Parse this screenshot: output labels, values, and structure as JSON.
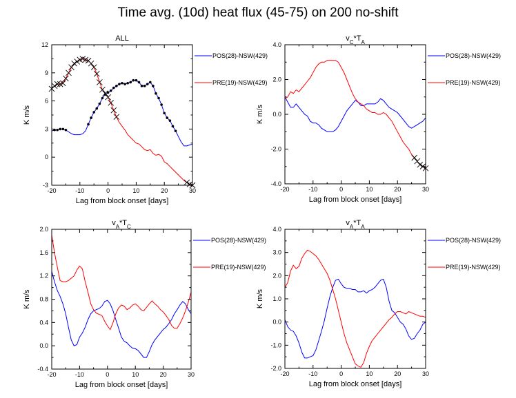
{
  "title": "Time avg. (10d) heat flux (45-75) on 200 no-shift",
  "chart_data": [
    {
      "type": "line",
      "title": "ALL",
      "title_parts": [
        {
          "text": "ALL",
          "sub": ""
        }
      ],
      "xlabel": "Lag from block onset [days]",
      "ylabel": "K m/s",
      "xlim": [
        -20,
        30
      ],
      "ylim": [
        -3,
        12
      ],
      "xticks": [
        -20,
        -10,
        0,
        10,
        20,
        30
      ],
      "yticks": [
        -3,
        0,
        3,
        6,
        9,
        12
      ],
      "ytick_labels": [
        "-3",
        "0",
        "3",
        "6",
        "9",
        "12"
      ],
      "series": [
        {
          "name": "POS(28)-NSW(429)",
          "color": "#0000ff",
          "x": [
            -20,
            -19,
            -18,
            -17,
            -16,
            -15,
            -14,
            -13,
            -12,
            -11,
            -10,
            -9,
            -8,
            -7,
            -6,
            -5,
            -4,
            -3,
            -2,
            -1,
            0,
            1,
            2,
            3,
            4,
            5,
            6,
            7,
            8,
            9,
            10,
            11,
            12,
            13,
            14,
            15,
            16,
            17,
            18,
            19,
            20,
            21,
            22,
            23,
            24,
            25,
            26,
            27,
            28,
            29,
            30
          ],
          "y": [
            2.8,
            2.9,
            2.9,
            3.0,
            3.0,
            2.9,
            2.7,
            2.5,
            2.4,
            2.4,
            2.4,
            2.5,
            2.8,
            3.5,
            4.2,
            4.8,
            5.2,
            5.7,
            6.3,
            6.7,
            6.9,
            7.1,
            7.4,
            7.6,
            7.8,
            7.9,
            7.8,
            7.9,
            8.0,
            8.2,
            8.2,
            8.0,
            7.6,
            7.6,
            7.8,
            8.0,
            7.6,
            6.8,
            6.3,
            5.6,
            4.7,
            4.2,
            3.9,
            3.3,
            2.8,
            2.2,
            1.6,
            1.2,
            1.2,
            1.3,
            1.4
          ],
          "markers": {
            "shape": "dot",
            "x": [
              -19,
              -18,
              -17,
              -16,
              -15,
              -7,
              -6,
              -5,
              -4,
              -3,
              -2,
              -1,
              0,
              1,
              2,
              3,
              4,
              5,
              6,
              7,
              8,
              9,
              10,
              11,
              12,
              13,
              14,
              15,
              16,
              17,
              18,
              19,
              20,
              21,
              22,
              23,
              24
            ]
          }
        },
        {
          "name": "PRE(19)-NSW(429)",
          "color": "#ff0000",
          "x": [
            -20,
            -19,
            -18,
            -17,
            -16,
            -15,
            -14,
            -13,
            -12,
            -11,
            -10,
            -9,
            -8,
            -7,
            -6,
            -5,
            -4,
            -3,
            -2,
            -1,
            0,
            1,
            2,
            3,
            4,
            5,
            6,
            7,
            8,
            9,
            10,
            11,
            12,
            13,
            14,
            15,
            16,
            17,
            18,
            19,
            20,
            21,
            22,
            23,
            24,
            25,
            26,
            27,
            28,
            29,
            30
          ],
          "y": [
            7.3,
            7.6,
            7.8,
            7.8,
            7.9,
            8.4,
            9.0,
            9.6,
            10.0,
            10.2,
            10.4,
            10.5,
            10.4,
            10.3,
            10.0,
            9.6,
            8.9,
            8.0,
            7.2,
            6.8,
            6.4,
            5.8,
            5.0,
            4.3,
            3.7,
            3.3,
            2.9,
            2.4,
            2.1,
            1.8,
            1.5,
            1.4,
            1.1,
            0.8,
            0.7,
            0.8,
            0.4,
            0.2,
            0.3,
            0.1,
            -0.5,
            -0.7,
            -1.0,
            -1.3,
            -1.6,
            -1.9,
            -2.2,
            -2.5,
            -2.7,
            -2.9,
            -3.0
          ],
          "markers": {
            "shape": "x",
            "x": [
              -20,
              -19,
              -18,
              -17,
              -16,
              -15,
              -14,
              -13,
              -12,
              -11,
              -10,
              -9,
              -8,
              -7,
              -6,
              -5,
              -4,
              -3,
              -2,
              -1,
              0,
              1,
              2,
              3,
              28,
              29,
              30
            ]
          }
        }
      ]
    },
    {
      "type": "line",
      "title": "vC*TA",
      "title_parts": [
        {
          "text": "v",
          "sub": "C"
        },
        {
          "text": "*T",
          "sub": "A"
        }
      ],
      "xlabel": "Lag from block onset [days]",
      "ylabel": "K m/s",
      "xlim": [
        -20,
        30
      ],
      "ylim": [
        -4,
        4
      ],
      "xticks": [
        -20,
        -10,
        0,
        10,
        20,
        30
      ],
      "yticks": [
        -4,
        -2,
        0,
        2,
        4
      ],
      "ytick_labels": [
        "-4.0",
        "-2.0",
        "0.0",
        "2.0",
        "4.0"
      ],
      "series": [
        {
          "name": "POS(28)-NSW(429)",
          "color": "#0000ff",
          "x": [
            -20,
            -19,
            -18,
            -17,
            -16,
            -15,
            -14,
            -13,
            -12,
            -11,
            -10,
            -9,
            -8,
            -7,
            -6,
            -5,
            -4,
            -3,
            -2,
            -1,
            0,
            1,
            2,
            3,
            4,
            5,
            6,
            7,
            8,
            9,
            10,
            11,
            12,
            13,
            14,
            15,
            16,
            17,
            18,
            19,
            20,
            21,
            22,
            23,
            24,
            25,
            26,
            27,
            28,
            29,
            30
          ],
          "y": [
            1.0,
            0.7,
            0.4,
            0.4,
            0.6,
            0.4,
            0.2,
            0.0,
            -0.1,
            -0.4,
            -0.5,
            -0.5,
            -0.6,
            -0.8,
            -0.9,
            -1.0,
            -1.0,
            -1.0,
            -0.9,
            -0.7,
            -0.4,
            -0.1,
            0.2,
            0.4,
            0.6,
            0.8,
            0.7,
            0.5,
            0.5,
            0.6,
            0.6,
            0.6,
            0.6,
            0.7,
            0.9,
            0.8,
            0.6,
            0.4,
            0.3,
            0.2,
            0.1,
            -0.1,
            -0.3,
            -0.5,
            -0.7,
            -0.8,
            -0.7,
            -0.6,
            -0.5,
            -0.4,
            -0.2
          ]
        },
        {
          "name": "PRE(19)-NSW(429)",
          "color": "#ff0000",
          "x": [
            -20,
            -19,
            -18,
            -17,
            -16,
            -15,
            -14,
            -13,
            -12,
            -11,
            -10,
            -9,
            -8,
            -7,
            -6,
            -5,
            -4,
            -3,
            -2,
            -1,
            0,
            1,
            2,
            3,
            4,
            5,
            6,
            7,
            8,
            9,
            10,
            11,
            12,
            13,
            14,
            15,
            16,
            17,
            18,
            19,
            20,
            21,
            22,
            23,
            24,
            25,
            26,
            27,
            28,
            29,
            30
          ],
          "y": [
            0.9,
            1.0,
            1.3,
            1.2,
            1.4,
            1.3,
            1.5,
            1.7,
            1.9,
            2.1,
            2.4,
            2.7,
            2.9,
            3.0,
            3.0,
            3.1,
            3.1,
            3.1,
            3.1,
            3.0,
            2.7,
            2.4,
            2.0,
            1.6,
            1.2,
            0.9,
            0.7,
            0.6,
            0.5,
            0.3,
            0.2,
            0.1,
            0.1,
            0.0,
            0.0,
            0.1,
            0.0,
            -0.2,
            -0.4,
            -0.7,
            -1.0,
            -1.3,
            -1.6,
            -1.8,
            -2.0,
            -2.3,
            -2.5,
            -2.7,
            -2.9,
            -3.0,
            -3.1
          ],
          "markers": {
            "shape": "x",
            "x": [
              26,
              27,
              28,
              29,
              30
            ]
          }
        }
      ]
    },
    {
      "type": "line",
      "title": "vA*TC",
      "title_parts": [
        {
          "text": "v",
          "sub": "A"
        },
        {
          "text": "*T",
          "sub": "C"
        }
      ],
      "xlabel": "Lag from block onset [days]",
      "ylabel": "K m/s",
      "xlim": [
        -20,
        30
      ],
      "ylim": [
        -0.4,
        2.0
      ],
      "xticks": [
        -20,
        -10,
        0,
        10,
        20,
        30
      ],
      "yticks": [
        -0.4,
        0.0,
        0.4,
        0.8,
        1.2,
        1.6,
        2.0
      ],
      "ytick_labels": [
        "-0.4",
        "0.0",
        "0.4",
        "0.8",
        "1.2",
        "1.6",
        "2.0"
      ],
      "series": [
        {
          "name": "POS(28)-NSW(429)",
          "color": "#0000ff",
          "x": [
            -20,
            -19,
            -18,
            -17,
            -16,
            -15,
            -14,
            -13,
            -12,
            -11,
            -10,
            -9,
            -8,
            -7,
            -6,
            -5,
            -4,
            -3,
            -2,
            -1,
            0,
            1,
            2,
            3,
            4,
            5,
            6,
            7,
            8,
            9,
            10,
            11,
            12,
            13,
            14,
            15,
            16,
            17,
            18,
            19,
            20,
            21,
            22,
            23,
            24,
            25,
            26,
            27,
            28,
            29,
            30
          ],
          "y": [
            1.28,
            1.1,
            0.95,
            0.85,
            0.72,
            0.55,
            0.32,
            0.1,
            0.0,
            0.02,
            0.15,
            0.22,
            0.32,
            0.45,
            0.55,
            0.6,
            0.62,
            0.64,
            0.68,
            0.76,
            0.78,
            0.72,
            0.6,
            0.45,
            0.3,
            0.15,
            0.08,
            0.05,
            0.0,
            -0.04,
            -0.05,
            -0.08,
            -0.14,
            -0.2,
            -0.2,
            -0.1,
            0.02,
            0.1,
            0.16,
            0.22,
            0.28,
            0.32,
            0.38,
            0.45,
            0.55,
            0.62,
            0.7,
            0.76,
            0.72,
            0.62,
            0.55
          ]
        },
        {
          "name": "PRE(19)-NSW(429)",
          "color": "#ff0000",
          "x": [
            -20,
            -19,
            -18,
            -17,
            -16,
            -15,
            -14,
            -13,
            -12,
            -11,
            -10,
            -9,
            -8,
            -7,
            -6,
            -5,
            -4,
            -3,
            -2,
            -1,
            0,
            1,
            2,
            3,
            4,
            5,
            6,
            7,
            8,
            9,
            10,
            11,
            12,
            13,
            14,
            15,
            16,
            17,
            18,
            19,
            20,
            21,
            22,
            23,
            24,
            25,
            26,
            27,
            28,
            29,
            30
          ],
          "y": [
            1.9,
            1.6,
            1.35,
            1.12,
            1.1,
            1.1,
            1.12,
            1.16,
            1.2,
            1.3,
            1.37,
            1.32,
            1.1,
            0.92,
            0.72,
            0.62,
            0.56,
            0.54,
            0.52,
            0.42,
            0.34,
            0.28,
            0.4,
            0.55,
            0.65,
            0.7,
            0.68,
            0.62,
            0.65,
            0.7,
            0.72,
            0.68,
            0.62,
            0.6,
            0.66,
            0.72,
            0.77,
            0.72,
            0.68,
            0.62,
            0.58,
            0.52,
            0.45,
            0.35,
            0.3,
            0.3,
            0.38,
            0.48,
            0.6,
            0.75,
            0.92
          ]
        }
      ]
    },
    {
      "type": "line",
      "title": "vA*TA",
      "title_parts": [
        {
          "text": "v",
          "sub": "A"
        },
        {
          "text": "*T",
          "sub": "A"
        }
      ],
      "xlabel": "Lag from block onset [days]",
      "ylabel": "K m/s",
      "xlim": [
        -20,
        30
      ],
      "ylim": [
        -2,
        4
      ],
      "xticks": [
        -20,
        -10,
        0,
        10,
        20,
        30
      ],
      "yticks": [
        -2,
        -1,
        0,
        1,
        2,
        3,
        4
      ],
      "ytick_labels": [
        "-2.0",
        "-1.0",
        "0.0",
        "1.0",
        "2.0",
        "3.0",
        "4.0"
      ],
      "series": [
        {
          "name": "POS(28)-NSW(429)",
          "color": "#0000ff",
          "x": [
            -20,
            -19,
            -18,
            -17,
            -16,
            -15,
            -14,
            -13,
            -12,
            -11,
            -10,
            -9,
            -8,
            -7,
            -6,
            -5,
            -4,
            -3,
            -2,
            -1,
            0,
            1,
            2,
            3,
            4,
            5,
            6,
            7,
            8,
            9,
            10,
            11,
            12,
            13,
            14,
            15,
            16,
            17,
            18,
            19,
            20,
            21,
            22,
            23,
            24,
            25,
            26,
            27,
            28,
            29,
            30
          ],
          "y": [
            0.1,
            -0.2,
            -0.35,
            -0.4,
            -0.6,
            -0.9,
            -1.3,
            -1.55,
            -1.55,
            -1.5,
            -1.45,
            -1.2,
            -0.8,
            -0.4,
            0.05,
            0.6,
            1.1,
            1.5,
            1.8,
            1.85,
            1.65,
            1.5,
            1.45,
            1.45,
            1.4,
            1.4,
            1.3,
            1.3,
            1.35,
            1.25,
            1.35,
            1.4,
            1.5,
            1.65,
            1.8,
            1.85,
            1.5,
            0.9,
            0.5,
            0.4,
            0.2,
            0.0,
            -0.1,
            -0.3,
            -0.6,
            -0.75,
            -0.7,
            -0.5,
            -0.35,
            -0.1,
            0.0
          ]
        },
        {
          "name": "PRE(19)-NSW(429)",
          "color": "#ff0000",
          "x": [
            -20,
            -19,
            -18,
            -17,
            -16,
            -15,
            -14,
            -13,
            -12,
            -11,
            -10,
            -9,
            -8,
            -7,
            -6,
            -5,
            -4,
            -3,
            -2,
            -1,
            0,
            1,
            2,
            3,
            4,
            5,
            6,
            7,
            8,
            9,
            10,
            11,
            12,
            13,
            14,
            15,
            16,
            17,
            18,
            19,
            20,
            21,
            22,
            23,
            24,
            25,
            26,
            27,
            28,
            29,
            30
          ],
          "y": [
            1.5,
            1.7,
            2.2,
            2.45,
            2.3,
            2.4,
            2.75,
            2.95,
            3.1,
            3.05,
            2.95,
            2.85,
            2.7,
            2.5,
            2.3,
            2.1,
            1.8,
            1.4,
            1.0,
            0.5,
            0.0,
            -0.5,
            -0.9,
            -1.2,
            -1.5,
            -1.8,
            -1.9,
            -1.95,
            -1.75,
            -1.35,
            -1.05,
            -0.8,
            -0.65,
            -0.5,
            -0.35,
            -0.2,
            -0.05,
            0.1,
            0.2,
            0.35,
            0.45,
            0.45,
            0.4,
            0.35,
            0.45,
            0.4,
            0.35,
            0.3,
            0.25,
            0.25,
            0.2
          ]
        }
      ]
    }
  ]
}
